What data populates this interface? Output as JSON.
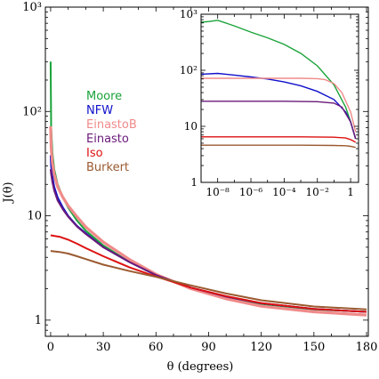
{
  "chart_data": [
    {
      "type": "line",
      "title": "",
      "xlabel": "θ (degrees)",
      "ylabel": "J(θ)",
      "xlim": [
        -3,
        181
      ],
      "ylim": [
        0.7,
        1000
      ],
      "yscale": "log",
      "xticks": [
        0,
        30,
        60,
        90,
        120,
        150,
        180
      ],
      "yticks": [
        1,
        10,
        100,
        1000
      ],
      "ytick_labels": [
        "1",
        "10",
        "10²",
        "10³"
      ],
      "legend_position": "left",
      "series": [
        {
          "name": "Moore",
          "color": "#1aa33a",
          "x": [
            0,
            0.3,
            1,
            2,
            4,
            7,
            10,
            15,
            20,
            30,
            45,
            60,
            80,
            100,
            120,
            150,
            180
          ],
          "y": [
            300,
            70,
            40,
            28,
            20,
            15,
            12,
            9,
            7.2,
            5.2,
            3.6,
            2.7,
            2.0,
            1.65,
            1.43,
            1.27,
            1.2
          ]
        },
        {
          "name": "NFW",
          "color": "#1010cc",
          "x": [
            0,
            0.3,
            1,
            2,
            4,
            7,
            10,
            15,
            20,
            30,
            45,
            60,
            80,
            100,
            120,
            150,
            180
          ],
          "y": [
            38,
            30,
            24,
            19,
            15,
            12,
            10,
            8,
            6.8,
            5.0,
            3.6,
            2.7,
            2.05,
            1.68,
            1.45,
            1.28,
            1.2
          ]
        },
        {
          "name": "EinastoB",
          "color": "#f08a8a",
          "x": [
            0,
            0.3,
            1,
            2,
            4,
            7,
            10,
            15,
            20,
            30,
            45,
            60,
            80,
            100,
            120,
            150,
            180
          ],
          "y": [
            72,
            45,
            32,
            25,
            19,
            15,
            12.5,
            9.8,
            7.8,
            5.6,
            3.8,
            2.75,
            2.0,
            1.6,
            1.36,
            1.2,
            1.12
          ]
        },
        {
          "name": "Einasto",
          "color": "#6a1a7a",
          "x": [
            0,
            0.3,
            1,
            2,
            4,
            7,
            10,
            15,
            20,
            30,
            45,
            60,
            80,
            100,
            120,
            150,
            180
          ],
          "y": [
            28,
            25,
            21,
            17.5,
            14,
            11.5,
            9.8,
            7.9,
            6.7,
            5.0,
            3.6,
            2.7,
            2.05,
            1.68,
            1.45,
            1.28,
            1.2
          ]
        },
        {
          "name": "Iso",
          "color": "#dd1111",
          "x": [
            0,
            5,
            10,
            15,
            20,
            30,
            45,
            60,
            80,
            100,
            120,
            150,
            180
          ],
          "y": [
            6.5,
            6.3,
            5.9,
            5.4,
            4.9,
            4.1,
            3.2,
            2.62,
            2.05,
            1.7,
            1.46,
            1.28,
            1.2
          ]
        },
        {
          "name": "Burkert",
          "color": "#9a5a30",
          "x": [
            0,
            5,
            10,
            15,
            20,
            30,
            45,
            60,
            80,
            100,
            120,
            150,
            180
          ],
          "y": [
            4.6,
            4.5,
            4.35,
            4.1,
            3.85,
            3.4,
            2.95,
            2.6,
            2.15,
            1.8,
            1.55,
            1.35,
            1.27
          ]
        }
      ]
    },
    {
      "type": "line",
      "title": "",
      "xlabel": "",
      "ylabel": "",
      "xscale": "log",
      "yscale": "log",
      "xlim": [
        1e-09,
        3
      ],
      "ylim": [
        1,
        1000
      ],
      "xticks": [
        1e-08,
        1e-06,
        0.0001,
        0.01,
        1
      ],
      "xtick_labels": [
        "10⁻⁸",
        "10⁻⁶",
        "10⁻⁴",
        "10⁻²",
        "1"
      ],
      "yticks": [
        1,
        10,
        100,
        1000
      ],
      "ytick_labels": [
        "1",
        "10",
        "10²",
        "10³"
      ],
      "series": [
        {
          "name": "Moore",
          "color": "#1aa33a",
          "x": [
            1e-09,
            3e-09,
            1e-08,
            1e-07,
            1e-06,
            1e-05,
            0.0001,
            0.001,
            0.01,
            0.1,
            0.5,
            1,
            2
          ],
          "y": [
            720,
            740,
            780,
            620,
            480,
            380,
            290,
            200,
            120,
            55,
            22,
            12,
            6
          ]
        },
        {
          "name": "NFW",
          "color": "#1010cc",
          "x": [
            1e-09,
            1e-08,
            1e-07,
            1e-06,
            1e-05,
            0.0001,
            0.001,
            0.01,
            0.1,
            0.5,
            1,
            2
          ],
          "y": [
            85,
            88,
            82,
            76,
            70,
            62,
            53,
            42,
            30,
            18,
            12,
            6
          ]
        },
        {
          "name": "EinastoB",
          "color": "#f08a8a",
          "x": [
            1e-09,
            1e-08,
            1e-06,
            0.0001,
            0.001,
            0.01,
            0.03,
            0.1,
            0.3,
            1,
            2
          ],
          "y": [
            72,
            72,
            72,
            72,
            72,
            71,
            68,
            58,
            40,
            18,
            8
          ]
        },
        {
          "name": "Einasto",
          "color": "#6a1a7a",
          "x": [
            1e-09,
            1e-06,
            0.0001,
            0.01,
            0.1,
            0.3,
            1,
            2
          ],
          "y": [
            28,
            28,
            28,
            27.5,
            26,
            22,
            12,
            6
          ]
        },
        {
          "name": "Iso",
          "color": "#dd1111",
          "x": [
            1e-09,
            1e-06,
            0.001,
            0.1,
            0.5,
            1,
            2
          ],
          "y": [
            6.5,
            6.5,
            6.5,
            6.4,
            6.2,
            5.8,
            5.2
          ]
        },
        {
          "name": "Burkert",
          "color": "#9a5a30",
          "x": [
            1e-09,
            1e-06,
            0.001,
            0.1,
            0.5,
            1,
            2
          ],
          "y": [
            4.6,
            4.6,
            4.6,
            4.55,
            4.5,
            4.4,
            4.2
          ]
        }
      ]
    }
  ]
}
